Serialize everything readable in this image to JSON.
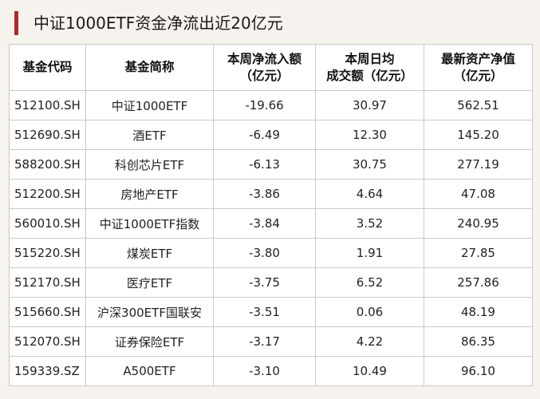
{
  "title": "中证1000ETF资金净流出近20亿元",
  "table": {
    "headers": [
      {
        "line1": "基金代码",
        "line2": ""
      },
      {
        "line1": "基金简称",
        "line2": ""
      },
      {
        "line1": "本周净流入额",
        "line2": "（亿元）"
      },
      {
        "line1": "本周日均",
        "line2": "成交额（亿元）"
      },
      {
        "line1": "最新资产净值",
        "line2": "（亿元）"
      }
    ],
    "rows": [
      {
        "code": "512100.SH",
        "name": "中证1000ETF",
        "net_inflow": "-19.66",
        "avg_turnover": "30.97",
        "nav": "562.51"
      },
      {
        "code": "512690.SH",
        "name": "酒ETF",
        "net_inflow": "-6.49",
        "avg_turnover": "12.30",
        "nav": "145.20"
      },
      {
        "code": "588200.SH",
        "name": "科创芯片ETF",
        "net_inflow": "-6.13",
        "avg_turnover": "30.75",
        "nav": "277.19"
      },
      {
        "code": "512200.SH",
        "name": "房地产ETF",
        "net_inflow": "-3.86",
        "avg_turnover": "4.64",
        "nav": "47.08"
      },
      {
        "code": "560010.SH",
        "name": "中证1000ETF指数",
        "net_inflow": "-3.84",
        "avg_turnover": "3.52",
        "nav": "240.95"
      },
      {
        "code": "515220.SH",
        "name": "煤炭ETF",
        "net_inflow": "-3.80",
        "avg_turnover": "1.91",
        "nav": "27.85"
      },
      {
        "code": "512170.SH",
        "name": "医疗ETF",
        "net_inflow": "-3.75",
        "avg_turnover": "6.52",
        "nav": "257.86"
      },
      {
        "code": "515660.SH",
        "name": "沪深300ETF国联安",
        "net_inflow": "-3.51",
        "avg_turnover": "0.06",
        "nav": "48.19"
      },
      {
        "code": "512070.SH",
        "name": "证券保险ETF",
        "net_inflow": "-3.17",
        "avg_turnover": "4.22",
        "nav": "86.35"
      },
      {
        "code": "159339.SZ",
        "name": "A500ETF",
        "net_inflow": "-3.10",
        "avg_turnover": "10.49",
        "nav": "96.10"
      }
    ]
  },
  "colors": {
    "accent": "#b3262b",
    "background": "#f6f3ee",
    "grid": "#c9c9c9"
  }
}
